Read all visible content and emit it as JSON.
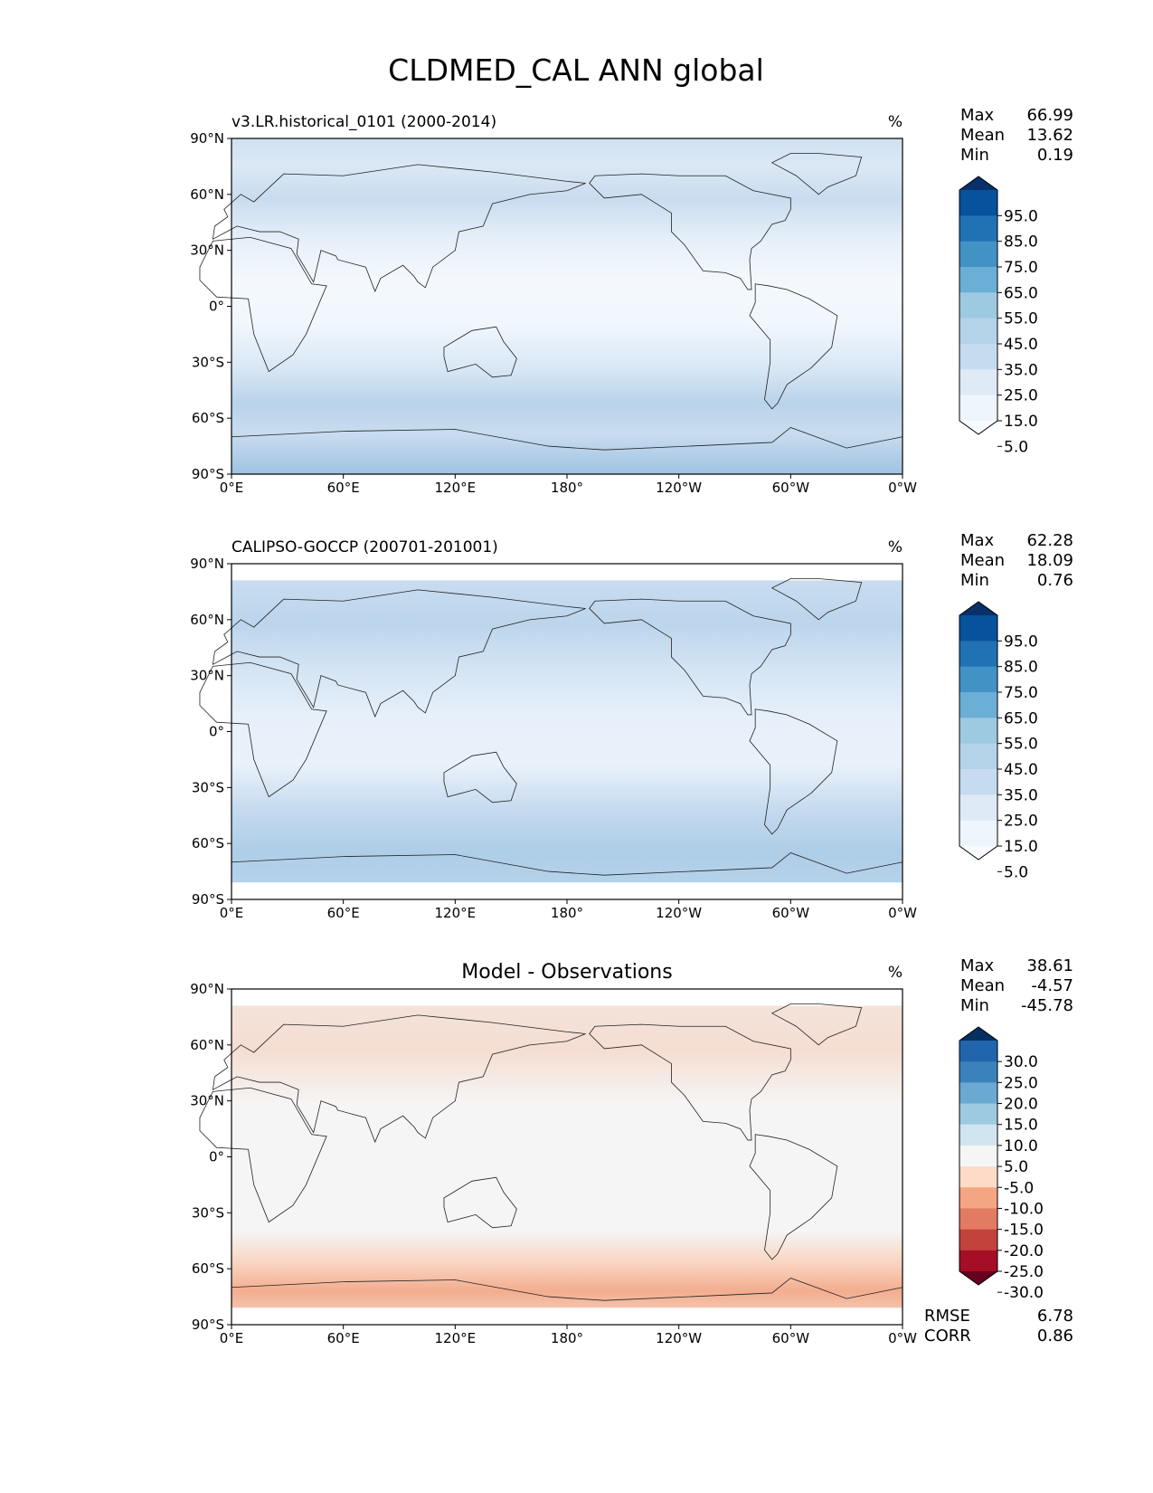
{
  "title": "CLDMED_CAL ANN global",
  "chart_data": [
    {
      "type": "heatmap",
      "subtitle": "v3.LR.historical_0101 (2000-2014)",
      "center_title": "",
      "units": "%",
      "stats": [
        {
          "label": "Max",
          "value": "66.99"
        },
        {
          "label": "Mean",
          "value": "13.62"
        },
        {
          "label": "Min",
          "value": "0.19"
        }
      ],
      "colorbar": {
        "labels": [
          "95.0",
          "85.0",
          "75.0",
          "65.0",
          "55.0",
          "45.0",
          "35.0",
          "25.0",
          "15.0",
          "5.0"
        ],
        "colors_top_to_bottom": [
          "#08306b",
          "#08519c",
          "#2171b5",
          "#4292c6",
          "#6baed6",
          "#9ecae1",
          "#b4d3e9",
          "#c6dbef",
          "#deebf7",
          "#eef5fc",
          "#f7fbff"
        ]
      },
      "xticks": [
        "0°E",
        "60°E",
        "120°E",
        "180°",
        "120°W",
        "60°W",
        "0°W"
      ],
      "yticks": [
        "90°N",
        "60°N",
        "30°N",
        "0°",
        "30°S",
        "60°S",
        "90°S"
      ],
      "metrics": []
    },
    {
      "type": "heatmap",
      "subtitle": "CALIPSO-GOCCP (200701-201001)",
      "center_title": "",
      "units": "%",
      "stats": [
        {
          "label": "Max",
          "value": "62.28"
        },
        {
          "label": "Mean",
          "value": "18.09"
        },
        {
          "label": "Min",
          "value": "0.76"
        }
      ],
      "colorbar": {
        "labels": [
          "95.0",
          "85.0",
          "75.0",
          "65.0",
          "55.0",
          "45.0",
          "35.0",
          "25.0",
          "15.0",
          "5.0"
        ],
        "colors_top_to_bottom": [
          "#08306b",
          "#08519c",
          "#2171b5",
          "#4292c6",
          "#6baed6",
          "#9ecae1",
          "#b4d3e9",
          "#c6dbef",
          "#deebf7",
          "#eef5fc",
          "#f7fbff"
        ]
      },
      "xticks": [
        "0°E",
        "60°E",
        "120°E",
        "180°",
        "120°W",
        "60°W",
        "0°W"
      ],
      "yticks": [
        "90°N",
        "60°N",
        "30°N",
        "0°",
        "30°S",
        "60°S",
        "90°S"
      ],
      "metrics": []
    },
    {
      "type": "heatmap",
      "subtitle": "",
      "center_title": "Model - Observations",
      "units": "%",
      "stats": [
        {
          "label": "Max",
          "value": "38.61"
        },
        {
          "label": "Mean",
          "value": "-4.57"
        },
        {
          "label": "Min",
          "value": "-45.78"
        }
      ],
      "colorbar": {
        "labels": [
          "30.0",
          "25.0",
          "20.0",
          "15.0",
          "10.0",
          "5.0",
          "-5.0",
          "-10.0",
          "-15.0",
          "-20.0",
          "-25.0",
          "-30.0"
        ],
        "colors_top_to_bottom": [
          "#053061",
          "#2166ac",
          "#3b82bd",
          "#6aa9d1",
          "#9ecae1",
          "#d1e5f0",
          "#f5f5f5",
          "#fddbc7",
          "#f4a582",
          "#e27b62",
          "#c4423c",
          "#a50f25",
          "#67001f"
        ]
      },
      "xticks": [
        "0°E",
        "60°E",
        "120°E",
        "180°",
        "120°W",
        "60°W",
        "0°W"
      ],
      "yticks": [
        "90°N",
        "60°N",
        "30°N",
        "0°",
        "30°S",
        "60°S",
        "90°S"
      ],
      "metrics": [
        {
          "label": "RMSE",
          "value": "6.78"
        },
        {
          "label": "CORR",
          "value": "0.86"
        }
      ]
    }
  ]
}
